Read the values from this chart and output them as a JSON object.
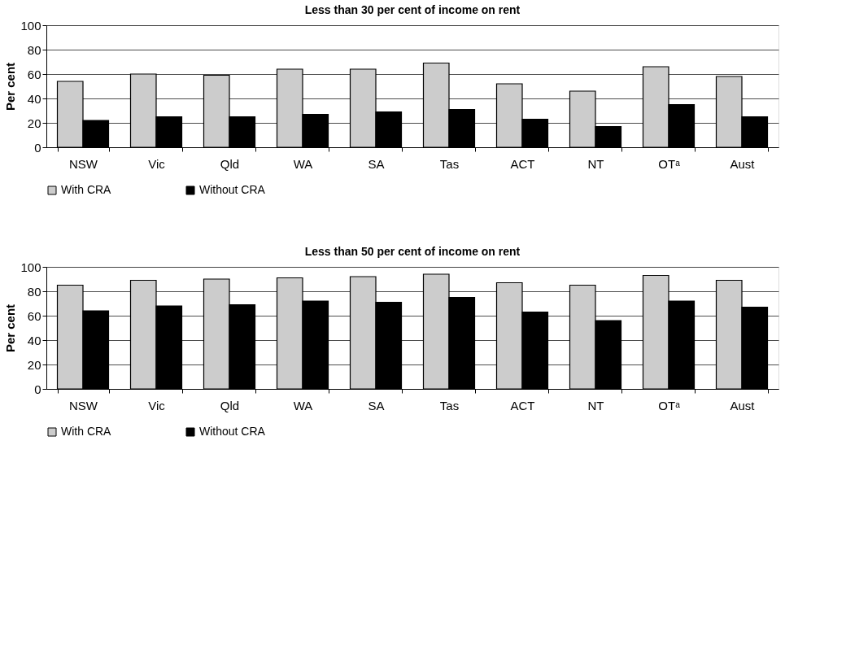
{
  "chart_data": [
    {
      "type": "bar",
      "title": "Less than 30 per cent of income on rent",
      "ylabel": "Per cent",
      "categories": [
        "NSW",
        "Vic",
        "Qld",
        "WA",
        "SA",
        "Tas",
        "ACT",
        "NT",
        "OTᵃ",
        "Aust"
      ],
      "series": [
        {
          "name": "With CRA",
          "color": "#cccccc",
          "values": [
            54,
            60,
            59,
            64,
            64,
            69,
            52,
            46,
            66,
            58
          ]
        },
        {
          "name": "Without CRA",
          "color": "#000000",
          "values": [
            22,
            25,
            25,
            27,
            29,
            31,
            23,
            17,
            35,
            25
          ]
        }
      ],
      "ylim": [
        0,
        100
      ],
      "yticks": [
        0,
        20,
        40,
        60,
        80,
        100
      ],
      "grid": "y",
      "legend": "bottom"
    },
    {
      "type": "bar",
      "title": "Less than 50 per cent of income on rent",
      "ylabel": "Per cent",
      "categories": [
        "NSW",
        "Vic",
        "Qld",
        "WA",
        "SA",
        "Tas",
        "ACT",
        "NT",
        "OTᵃ",
        "Aust"
      ],
      "series": [
        {
          "name": "With CRA",
          "color": "#cccccc",
          "values": [
            85,
            89,
            90,
            91,
            92,
            94,
            87,
            85,
            93,
            89
          ]
        },
        {
          "name": "Without CRA",
          "color": "#000000",
          "values": [
            64,
            68,
            69,
            72,
            71,
            75,
            63,
            56,
            72,
            67
          ]
        }
      ],
      "ylim": [
        0,
        100
      ],
      "yticks": [
        0,
        20,
        40,
        60,
        80,
        100
      ],
      "grid": "y",
      "legend": "bottom"
    }
  ]
}
